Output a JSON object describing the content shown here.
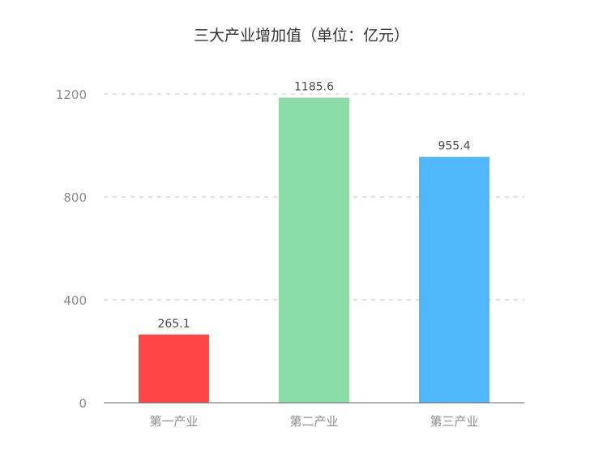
{
  "chart_data": {
    "type": "bar",
    "title": "三大产业增加值（单位：亿元）",
    "categories": [
      "第一产业",
      "第二产业",
      "第三产业"
    ],
    "values": [
      265.1,
      1185.6,
      955.4
    ],
    "data_labels": [
      "265.1",
      "1185.6",
      "955.4"
    ],
    "bar_colors": [
      "#ff4545",
      "#8cdca8",
      "#4fb7fa"
    ],
    "ylim": [
      0,
      1200
    ],
    "yticks": [
      0,
      400,
      800,
      1200
    ],
    "ytick_labels": [
      "0",
      "400",
      "800",
      "1200"
    ],
    "xlabel": "",
    "ylabel": "",
    "grid": true,
    "grid_style": "dashed",
    "legend": "none",
    "colors": {
      "title": "#333333",
      "tick_label": "#8c8c8c",
      "data_label": "#4a4a4a",
      "grid": "#d9d9d9",
      "axis": "#666666"
    }
  }
}
